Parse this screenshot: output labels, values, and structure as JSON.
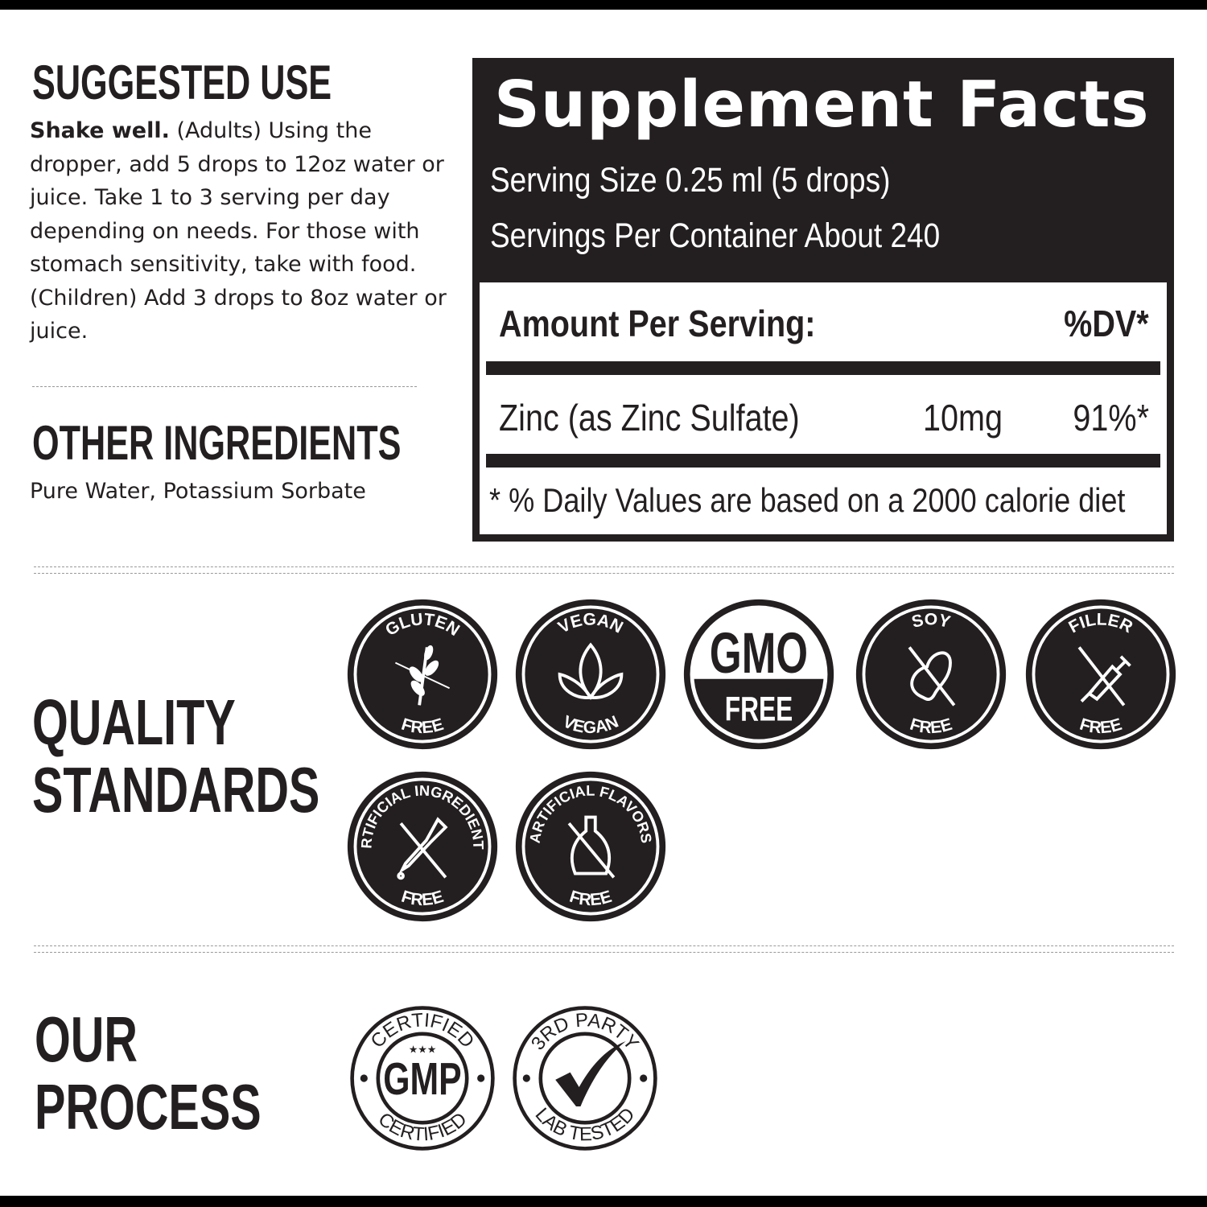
{
  "suggested_use": {
    "heading": "SUGGESTED USE",
    "lead": "Shake well.",
    "text": " (Adults) Using the dropper, add 5 drops to 12oz water or juice. Take 1 to 3 serving per day depending on needs. For those with stomach sensitivity, take with food. (Children) Add 3 drops to 8oz water or juice."
  },
  "other_ingredients": {
    "heading": "OTHER INGREDIENTS",
    "text": "Pure Water, Potassium Sorbate"
  },
  "supplement_facts": {
    "title": "Supplement Facts",
    "serving_size": "Serving Size 0.25 ml (5 drops)",
    "servings_per_container": "Servings Per Container About 240",
    "amount_header": "Amount Per Serving:",
    "dv_header": "%DV*",
    "nutrient": {
      "name": "Zinc (as Zinc Sulfate)",
      "amount": "10mg",
      "dv": "91%*"
    },
    "footnote": "* % Daily Values are based on a 2000 calorie diet"
  },
  "quality_standards": {
    "heading_line1": "QUALITY",
    "heading_line2": "STANDARDS",
    "badges": [
      {
        "top": "GLUTEN",
        "bottom": "FREE",
        "icon": "wheat-crossed-icon"
      },
      {
        "top": "VEGAN",
        "bottom": "VEGAN",
        "icon": "leaf-icon"
      },
      {
        "top": "GMO",
        "bottom": "FREE",
        "icon": "gmo-free-icon"
      },
      {
        "top": "SOY",
        "bottom": "FREE",
        "icon": "soybean-crossed-icon"
      },
      {
        "top": "FILLER",
        "bottom": "FREE",
        "icon": "syringe-crossed-icon"
      },
      {
        "top": "ARTIFICIAL INGREDIENTS",
        "bottom": "FREE",
        "icon": "dropper-crossed-icon"
      },
      {
        "top": "ARTIFICIAL FLAVORS",
        "bottom": "FREE",
        "icon": "bottle-crossed-icon"
      }
    ]
  },
  "our_process": {
    "heading_line1": "OUR",
    "heading_line2": "PROCESS",
    "badges": [
      {
        "top": "CERTIFIED",
        "center": "GMP",
        "bottom": "CERTIFIED",
        "icon": "three-stars-icon"
      },
      {
        "top": "3RD PARTY",
        "bottom": "LAB TESTED",
        "icon": "checkmark-icon"
      }
    ]
  },
  "colors": {
    "ink": "#231f20",
    "background": "#ffffff"
  }
}
